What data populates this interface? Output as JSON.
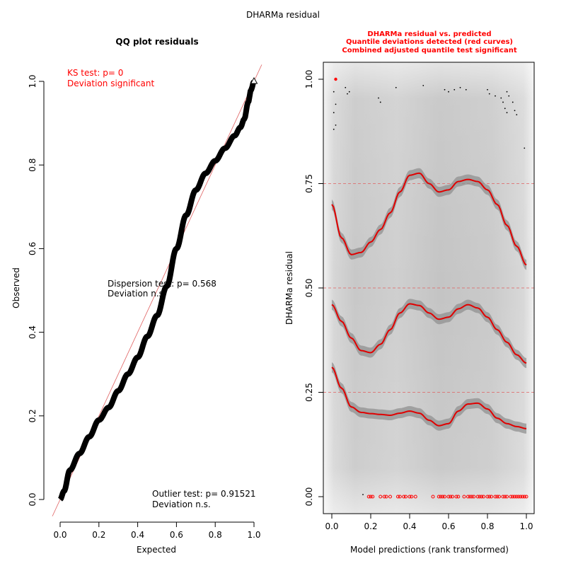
{
  "figure": {
    "title": "DHARMa residual"
  },
  "chart_data": [
    {
      "type": "scatter",
      "panel": "qq",
      "title": "QQ plot residuals",
      "xlabel": "Expected",
      "ylabel": "Observed",
      "xlim": [
        0,
        1
      ],
      "ylim": [
        0,
        1
      ],
      "x_ticks": [
        0.0,
        0.2,
        0.4,
        0.6,
        0.8,
        1.0
      ],
      "x_tick_labels": [
        "0.0",
        "0.2",
        "0.4",
        "0.6",
        "0.8",
        "1.0"
      ],
      "y_ticks": [
        0.0,
        0.2,
        0.4,
        0.6,
        0.8,
        1.0
      ],
      "y_tick_labels": [
        "0.0",
        "0.2",
        "0.4",
        "0.6",
        "0.8",
        "1.0"
      ],
      "reference_line": {
        "from": [
          0,
          0
        ],
        "to": [
          1,
          1
        ],
        "color": "#e06060"
      },
      "series": [
        {
          "x": [
            0.0,
            0.02,
            0.05,
            0.1,
            0.15,
            0.2,
            0.25,
            0.3,
            0.35,
            0.4,
            0.45,
            0.5,
            0.55,
            0.6,
            0.65,
            0.7,
            0.75,
            0.8,
            0.85,
            0.9,
            0.93,
            0.95,
            0.97,
            0.985,
            1.0
          ],
          "y": [
            0.0,
            0.02,
            0.07,
            0.11,
            0.15,
            0.19,
            0.22,
            0.26,
            0.3,
            0.34,
            0.39,
            0.44,
            0.51,
            0.6,
            0.68,
            0.74,
            0.78,
            0.81,
            0.84,
            0.87,
            0.89,
            0.91,
            0.95,
            0.98,
            1.0
          ]
        }
      ],
      "annotations": {
        "ks_test": "KS test: p= 0",
        "ks_deviation": "Deviation  significant",
        "dispersion_test": "Dispersion test: p= 0.568",
        "dispersion_deviation": "Deviation  n.s.",
        "outlier_test": "Outlier test: p= 0.91521",
        "outlier_deviation": "Deviation  n.s."
      },
      "colors": {
        "points": "#000000",
        "reference": "#e06060",
        "significant": "#ff0000"
      }
    },
    {
      "type": "line",
      "panel": "residual_vs_predicted",
      "title_lines": [
        "DHARMa residual vs. predicted",
        "Quantile deviations detected (red curves)",
        "Combined adjusted quantile test significant"
      ],
      "xlabel": "Model predictions (rank transformed)",
      "ylabel": "DHARMa residual",
      "xlim": [
        0,
        1
      ],
      "ylim": [
        0,
        1
      ],
      "x_ticks": [
        0.0,
        0.2,
        0.4,
        0.6,
        0.8,
        1.0
      ],
      "x_tick_labels": [
        "0.0",
        "0.2",
        "0.4",
        "0.6",
        "0.8",
        "1.0"
      ],
      "y_ticks": [
        0.0,
        0.25,
        0.5,
        0.75,
        1.0
      ],
      "y_tick_labels": [
        "0.00",
        "0.25",
        "0.50",
        "0.75",
        "1.00"
      ],
      "reference_lines": [
        0.25,
        0.5,
        0.75
      ],
      "series": [
        {
          "x": [
            0.0,
            0.05,
            0.1,
            0.15,
            0.2,
            0.25,
            0.3,
            0.35,
            0.4,
            0.45,
            0.5,
            0.55,
            0.6,
            0.65,
            0.7,
            0.75,
            0.8,
            0.85,
            0.9,
            0.95,
            1.0
          ],
          "y": [
            0.31,
            0.26,
            0.215,
            0.202,
            0.199,
            0.197,
            0.195,
            0.2,
            0.205,
            0.2,
            0.183,
            0.17,
            0.175,
            0.205,
            0.222,
            0.224,
            0.21,
            0.188,
            0.175,
            0.168,
            0.163
          ]
        },
        {
          "x": [
            0.0,
            0.05,
            0.1,
            0.15,
            0.2,
            0.25,
            0.3,
            0.35,
            0.4,
            0.45,
            0.5,
            0.55,
            0.6,
            0.65,
            0.7,
            0.75,
            0.8,
            0.85,
            0.9,
            0.95,
            1.0
          ],
          "y": [
            0.46,
            0.42,
            0.38,
            0.35,
            0.345,
            0.365,
            0.4,
            0.44,
            0.462,
            0.458,
            0.44,
            0.425,
            0.43,
            0.45,
            0.46,
            0.452,
            0.43,
            0.4,
            0.37,
            0.34,
            0.32
          ]
        },
        {
          "x": [
            0.0,
            0.05,
            0.1,
            0.15,
            0.2,
            0.25,
            0.3,
            0.35,
            0.4,
            0.45,
            0.5,
            0.55,
            0.6,
            0.65,
            0.7,
            0.75,
            0.8,
            0.85,
            0.9,
            0.95,
            1.0
          ],
          "y": [
            0.7,
            0.62,
            0.58,
            0.585,
            0.61,
            0.64,
            0.68,
            0.73,
            0.77,
            0.775,
            0.75,
            0.73,
            0.735,
            0.755,
            0.76,
            0.755,
            0.735,
            0.7,
            0.65,
            0.6,
            0.555
          ]
        }
      ],
      "points_top": [
        {
          "x": 0.02,
          "y": 1.0
        },
        {
          "x": 0.01,
          "y": 0.97
        },
        {
          "x": 0.02,
          "y": 0.94
        },
        {
          "x": 0.01,
          "y": 0.92
        },
        {
          "x": 0.02,
          "y": 0.89
        },
        {
          "x": 0.01,
          "y": 0.88
        },
        {
          "x": 0.07,
          "y": 0.98
        },
        {
          "x": 0.09,
          "y": 0.97
        },
        {
          "x": 0.08,
          "y": 0.965
        },
        {
          "x": 0.24,
          "y": 0.955
        },
        {
          "x": 0.25,
          "y": 0.945
        },
        {
          "x": 0.33,
          "y": 0.98
        },
        {
          "x": 0.47,
          "y": 0.985
        },
        {
          "x": 0.58,
          "y": 0.975
        },
        {
          "x": 0.6,
          "y": 0.97
        },
        {
          "x": 0.63,
          "y": 0.975
        },
        {
          "x": 0.66,
          "y": 0.98
        },
        {
          "x": 0.69,
          "y": 0.975
        },
        {
          "x": 0.8,
          "y": 0.975
        },
        {
          "x": 0.81,
          "y": 0.965
        },
        {
          "x": 0.84,
          "y": 0.96
        },
        {
          "x": 0.87,
          "y": 0.955
        },
        {
          "x": 0.88,
          "y": 0.945
        },
        {
          "x": 0.9,
          "y": 0.97
        },
        {
          "x": 0.91,
          "y": 0.96
        },
        {
          "x": 0.93,
          "y": 0.945
        },
        {
          "x": 0.89,
          "y": 0.93
        },
        {
          "x": 0.9,
          "y": 0.92
        },
        {
          "x": 0.94,
          "y": 0.925
        },
        {
          "x": 0.95,
          "y": 0.915
        },
        {
          "x": 0.99,
          "y": 0.835
        }
      ],
      "points_bottom_x": [
        0.16,
        0.19,
        0.2,
        0.21,
        0.25,
        0.27,
        0.28,
        0.3,
        0.34,
        0.35,
        0.37,
        0.38,
        0.4,
        0.41,
        0.43,
        0.52,
        0.55,
        0.56,
        0.57,
        0.58,
        0.6,
        0.61,
        0.62,
        0.64,
        0.65,
        0.68,
        0.7,
        0.71,
        0.72,
        0.73,
        0.75,
        0.76,
        0.77,
        0.78,
        0.8,
        0.81,
        0.82,
        0.84,
        0.85,
        0.86,
        0.88,
        0.89,
        0.9,
        0.92,
        0.93,
        0.94,
        0.95,
        0.96,
        0.97,
        0.98,
        0.99,
        1.0
      ],
      "colors": {
        "curve": "#e00000",
        "band": "#909090",
        "dashed": "#e06060",
        "title": "#ff0000",
        "outlier": "#ff0000"
      }
    }
  ]
}
